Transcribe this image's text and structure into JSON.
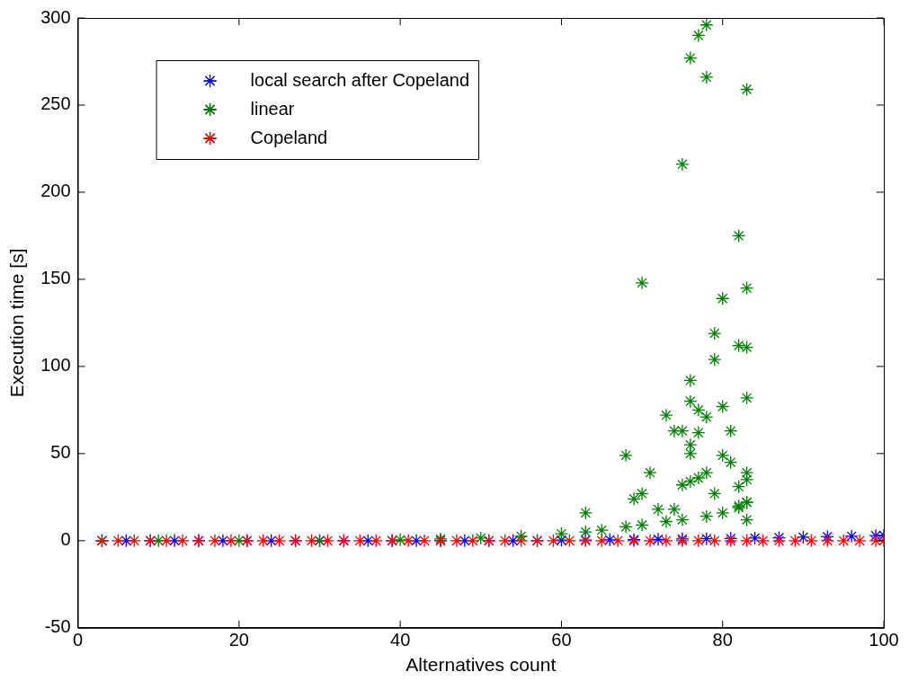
{
  "chart_data": {
    "type": "scatter",
    "xlabel": "Alternatives count",
    "ylabel": "Execution time [s]",
    "xlim": [
      0,
      100
    ],
    "xticks": [
      0,
      20,
      40,
      60,
      80,
      100
    ],
    "ylim": [
      -50,
      300
    ],
    "yticks": [
      -50,
      0,
      50,
      100,
      150,
      200,
      250,
      300
    ],
    "grid": false,
    "legend": "top left",
    "marker": "cross",
    "series": [
      {
        "name": "local search after Copeland",
        "color": "#0000ff",
        "x": [
          3,
          6,
          9,
          12,
          15,
          18,
          21,
          24,
          27,
          30,
          33,
          36,
          39,
          42,
          45,
          48,
          51,
          54,
          57,
          60,
          63,
          66,
          69,
          72,
          75,
          78,
          81,
          84,
          87,
          90,
          93,
          96,
          99,
          100
        ],
        "values": [
          0,
          0,
          0,
          0,
          0,
          0,
          0,
          0,
          0,
          0,
          0,
          0,
          0,
          0,
          0,
          0,
          0,
          0,
          0,
          0.3,
          0.4,
          0.5,
          0.6,
          0.8,
          1,
          1.1,
          1.3,
          1.5,
          1.7,
          2,
          2.3,
          2.6,
          2.9,
          3
        ]
      },
      {
        "name": "linear",
        "color": "#008000",
        "x": [
          3,
          10,
          20,
          30,
          40,
          45,
          50,
          55,
          60,
          63,
          65,
          68,
          70,
          73,
          75,
          78,
          80,
          82,
          83,
          75,
          76,
          77,
          78,
          78,
          83,
          70,
          82,
          80,
          83,
          79,
          79,
          82,
          83,
          76,
          83,
          73,
          76,
          77,
          78,
          80,
          68,
          75,
          77,
          80,
          81,
          81,
          71,
          69,
          70,
          75,
          76,
          77,
          78,
          79,
          82,
          83,
          83,
          83,
          83,
          63,
          82,
          74,
          72,
          76,
          76,
          74
        ],
        "values": [
          0,
          0,
          0,
          0,
          0.5,
          1,
          1.5,
          2.5,
          4,
          5,
          6,
          8,
          9,
          11,
          12,
          14,
          16,
          19,
          22,
          216,
          277,
          290,
          296,
          266,
          259,
          148,
          175,
          139,
          145,
          119,
          104,
          112,
          111,
          92,
          82,
          72,
          80,
          75,
          71,
          77,
          49,
          63,
          62,
          49,
          63,
          45,
          39,
          24,
          27,
          32,
          34,
          36,
          39,
          27,
          31,
          35,
          39,
          22,
          12,
          16,
          20,
          18,
          18,
          55,
          50,
          63
        ]
      },
      {
        "name": "Copeland",
        "color": "#ff0000",
        "x": [
          3,
          5,
          7,
          9,
          11,
          13,
          15,
          17,
          19,
          21,
          23,
          25,
          27,
          29,
          31,
          33,
          35,
          37,
          39,
          41,
          43,
          45,
          47,
          49,
          51,
          53,
          55,
          57,
          59,
          61,
          63,
          65,
          67,
          69,
          71,
          73,
          75,
          77,
          79,
          81,
          83,
          85,
          87,
          89,
          91,
          93,
          95,
          97,
          99,
          100
        ],
        "values": [
          0,
          0,
          0,
          0,
          0,
          0,
          0,
          0,
          0,
          0,
          0,
          0,
          0,
          0,
          0,
          0,
          0,
          0,
          0,
          0,
          0,
          0,
          0,
          0,
          0,
          0,
          0,
          0,
          0,
          0,
          0,
          0,
          0,
          0,
          0,
          0,
          0,
          0,
          0,
          0,
          0,
          0,
          0,
          0,
          0,
          0,
          0,
          0,
          0,
          0
        ]
      }
    ]
  }
}
